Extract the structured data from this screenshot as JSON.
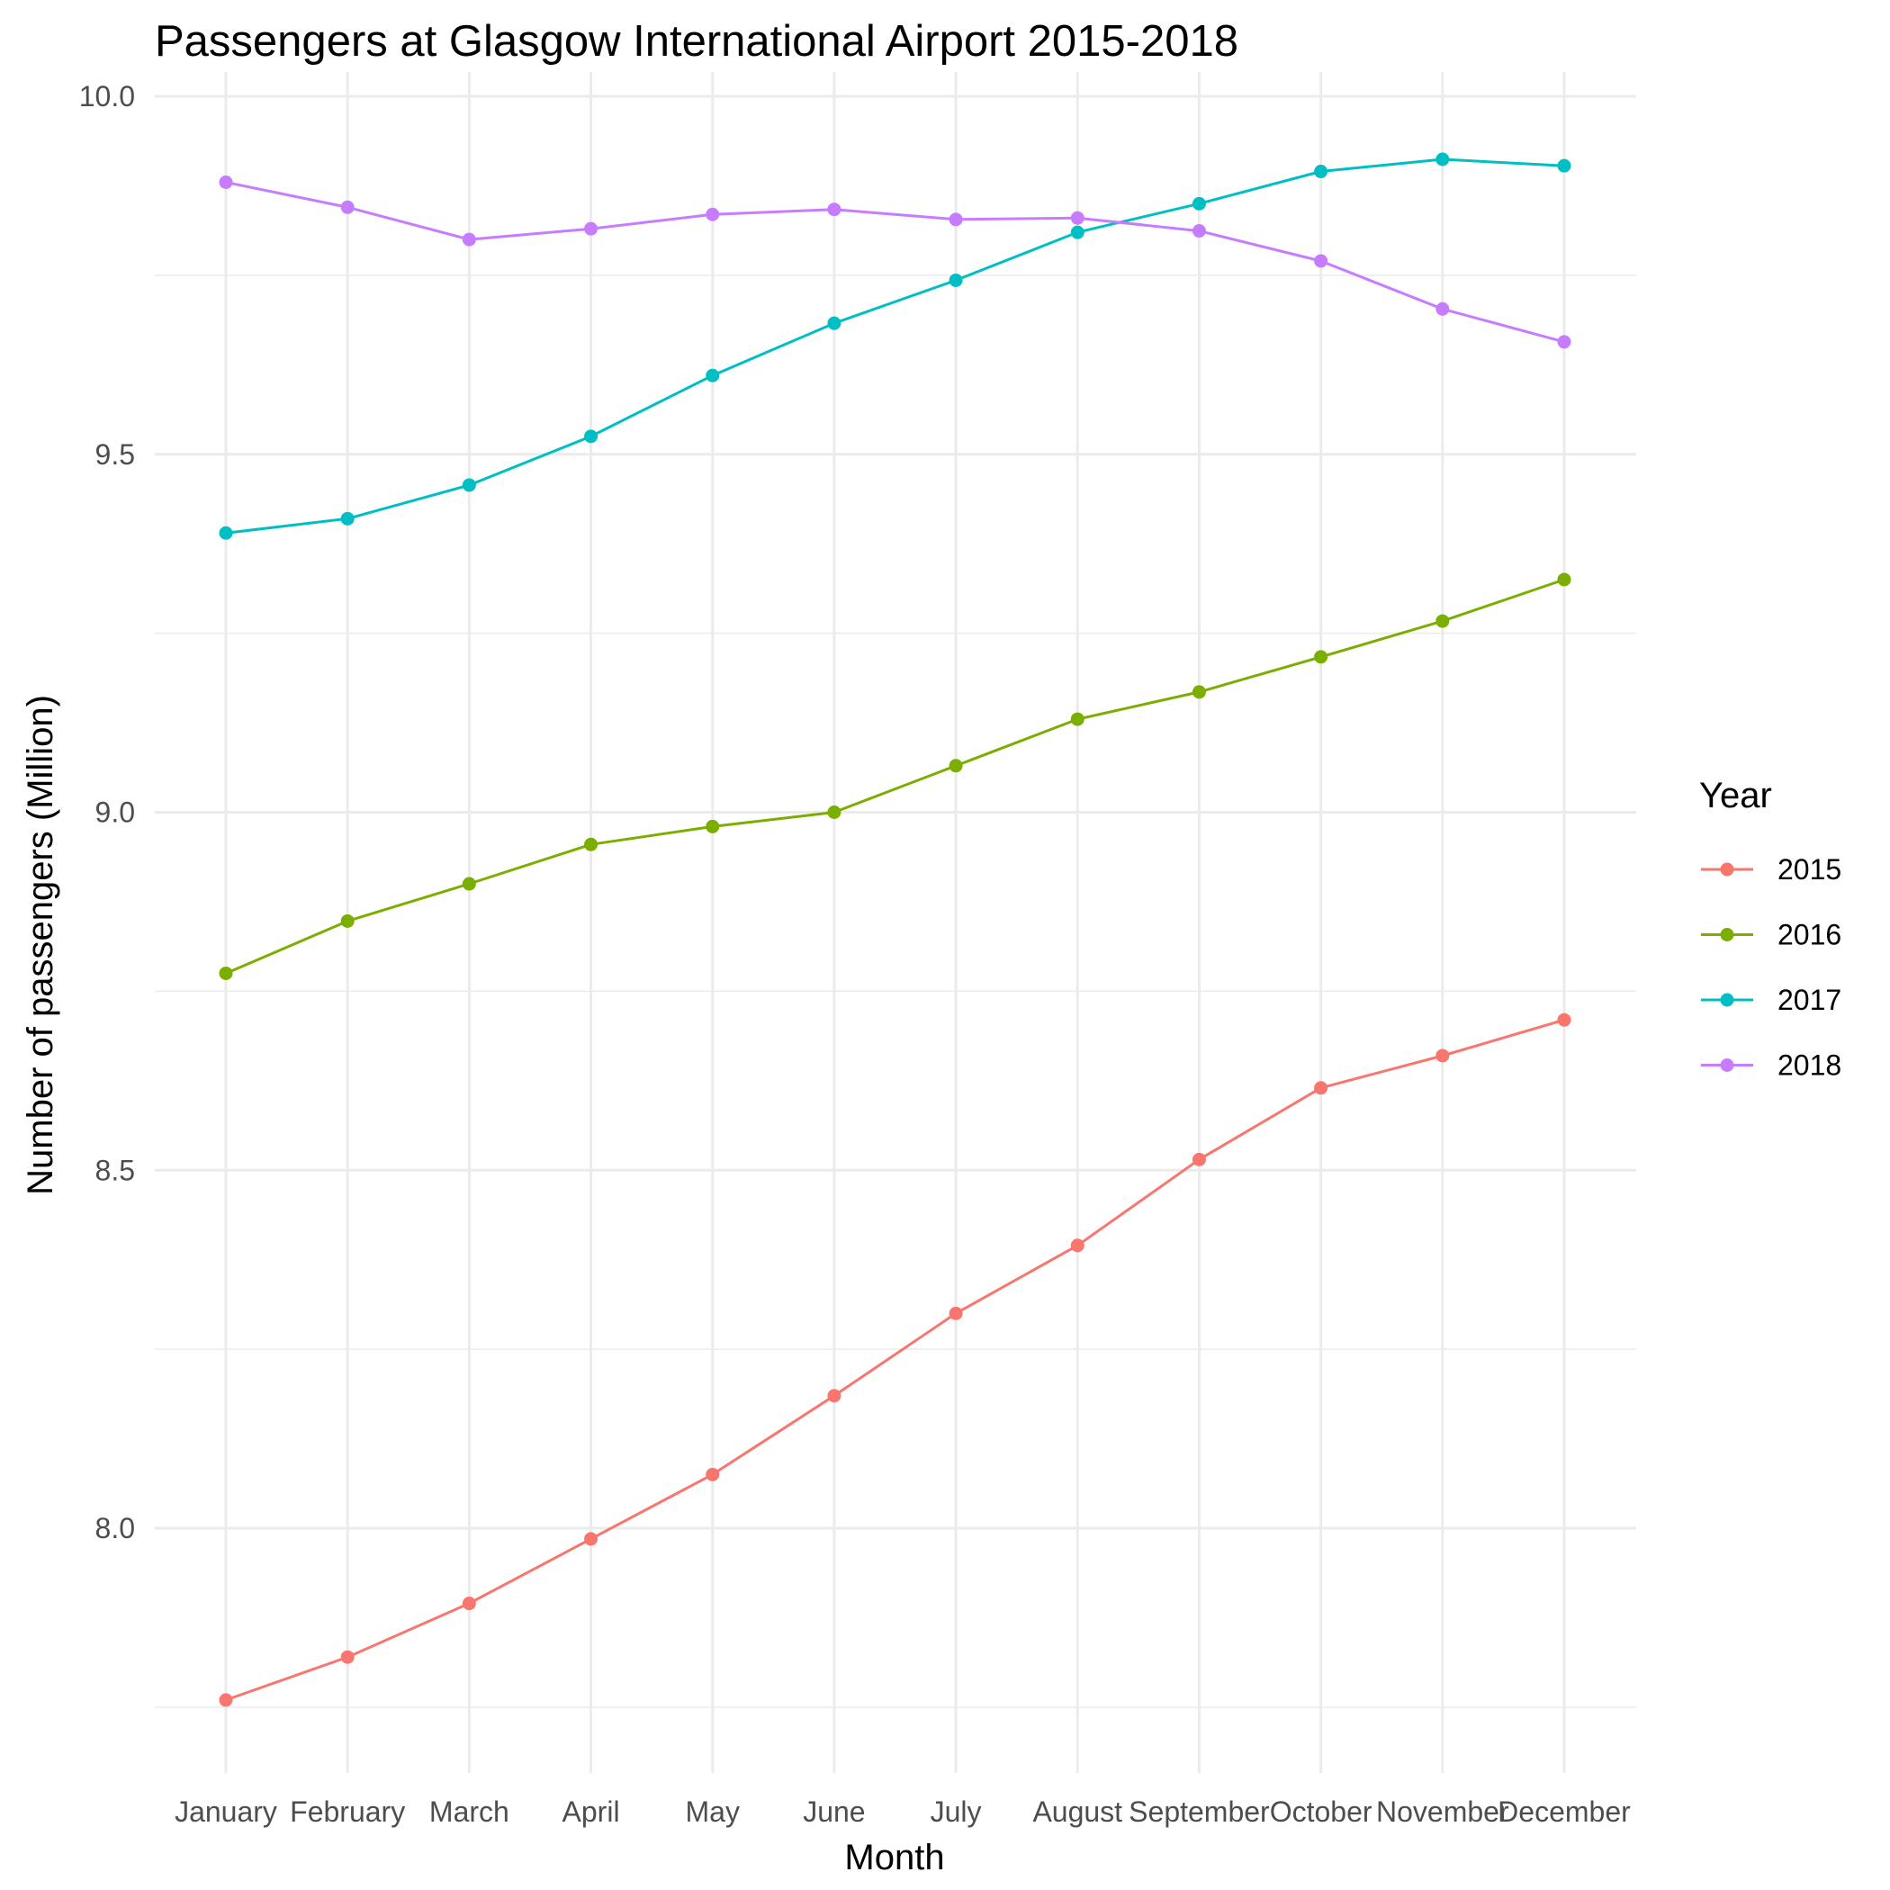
{
  "chart_data": {
    "type": "line",
    "title": "Passengers at Glasgow International Airport 2015-2018",
    "xlabel": "Month",
    "ylabel": "Number of passengers (Million)",
    "categories": [
      "January",
      "February",
      "March",
      "April",
      "May",
      "June",
      "July",
      "August",
      "September",
      "October",
      "November",
      "December"
    ],
    "ylim": [
      7.7,
      10.0
    ],
    "yticks": [
      "8.0",
      "8.5",
      "9.0",
      "9.5",
      "10.0"
    ],
    "grid": true,
    "legend": {
      "title": "Year",
      "position": "right"
    },
    "series": [
      {
        "name": "2015",
        "color": "#F8766D",
        "values": [
          7.76,
          7.82,
          7.895,
          7.985,
          8.075,
          8.185,
          8.3,
          8.395,
          8.515,
          8.615,
          8.66,
          8.71
        ]
      },
      {
        "name": "2016",
        "color": "#7CAE00",
        "values": [
          8.775,
          8.848,
          8.9,
          8.955,
          8.98,
          9.0,
          9.065,
          9.13,
          9.168,
          9.217,
          9.267,
          9.325
        ]
      },
      {
        "name": "2017",
        "color": "#00BFC4",
        "values": [
          9.39,
          9.41,
          9.457,
          9.525,
          9.61,
          9.683,
          9.743,
          9.81,
          9.85,
          9.895,
          9.912,
          9.903
        ]
      },
      {
        "name": "2018",
        "color": "#C77CFF",
        "values": [
          9.88,
          9.845,
          9.8,
          9.815,
          9.835,
          9.842,
          9.828,
          9.83,
          9.812,
          9.77,
          9.703,
          9.657
        ]
      }
    ]
  }
}
